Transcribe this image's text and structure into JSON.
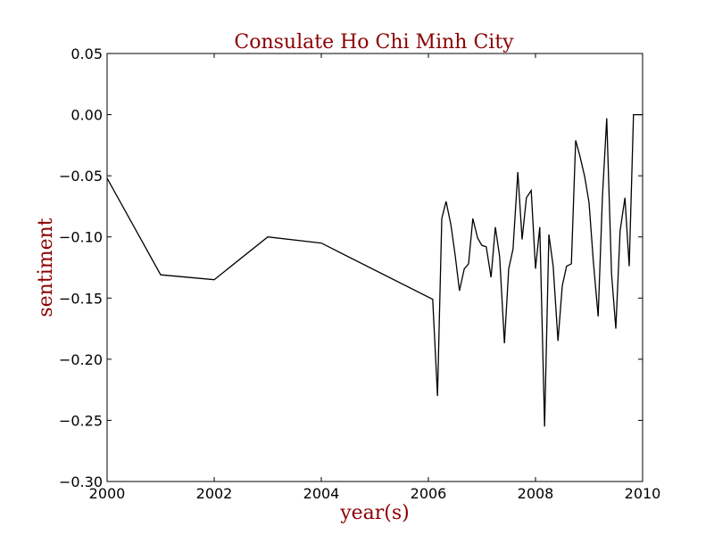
{
  "chart_data": {
    "type": "line",
    "title": "Consulate Ho Chi Minh City",
    "xlabel": "year(s)",
    "ylabel": "sentiment",
    "xlim": [
      2000,
      2010
    ],
    "ylim": [
      -0.3,
      0.05
    ],
    "xticks": [
      "2000",
      "2002",
      "2004",
      "2006",
      "2008",
      "2010"
    ],
    "yticks": [
      "0.05",
      "0.00",
      "−0.05",
      "−0.10",
      "−0.15",
      "−0.20",
      "−0.25",
      "−0.30"
    ],
    "grid": false,
    "colors": {
      "title": "#8b0000",
      "axis_label": "#8b0000",
      "line": "#000000"
    },
    "series": [
      {
        "x": [
          2000.0,
          2001.0,
          2002.0,
          2003.0,
          2004.0,
          2006.08,
          2006.17,
          2006.25,
          2006.33,
          2006.42,
          2006.5,
          2006.58,
          2006.67,
          2006.75,
          2006.83,
          2006.92,
          2007.0,
          2007.08,
          2007.17,
          2007.25,
          2007.33,
          2007.42,
          2007.5,
          2007.58,
          2007.67,
          2007.75,
          2007.83,
          2007.92,
          2008.0,
          2008.08,
          2008.17,
          2008.25,
          2008.33,
          2008.42,
          2008.5,
          2008.58,
          2008.67,
          2008.75,
          2008.83,
          2008.92,
          2009.0,
          2009.08,
          2009.17,
          2009.25,
          2009.33,
          2009.42,
          2009.5,
          2009.58,
          2009.67,
          2009.75,
          2009.83,
          2009.92,
          2010.0
        ],
        "y": [
          -0.052,
          -0.131,
          -0.135,
          -0.1,
          -0.105,
          -0.151,
          -0.23,
          -0.085,
          -0.071,
          -0.09,
          -0.115,
          -0.144,
          -0.126,
          -0.122,
          -0.085,
          -0.101,
          -0.107,
          -0.108,
          -0.133,
          -0.092,
          -0.116,
          -0.187,
          -0.126,
          -0.11,
          -0.047,
          -0.102,
          -0.068,
          -0.062,
          -0.126,
          -0.092,
          -0.255,
          -0.098,
          -0.124,
          -0.185,
          -0.14,
          -0.124,
          -0.122,
          -0.021,
          -0.034,
          -0.051,
          -0.072,
          -0.12,
          -0.165,
          -0.067,
          -0.003,
          -0.13,
          -0.175,
          -0.095,
          -0.068,
          -0.124,
          0.0,
          0.0,
          0.0
        ]
      }
    ]
  }
}
